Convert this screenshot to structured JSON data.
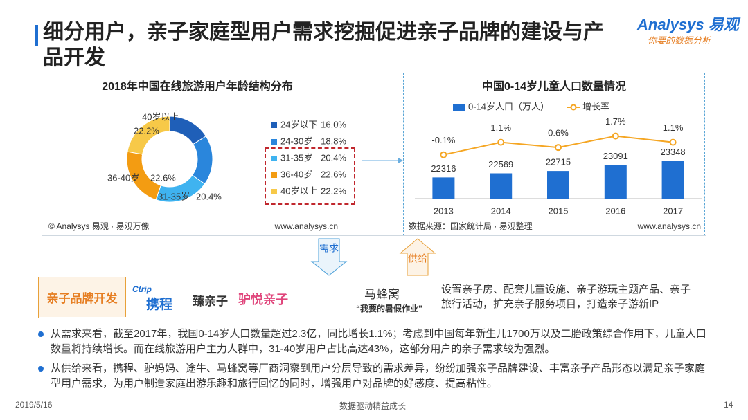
{
  "header": {
    "title": "细分用户，亲子家庭型用户需求挖掘促进亲子品牌的建设与产品开发",
    "logo": "Analysys",
    "logo_cn": "易观",
    "tagline": "你要的数据分析"
  },
  "chart_data": [
    {
      "type": "pie",
      "title": "2018年中国在线旅游用户年龄结构分布",
      "categories": [
        "24岁以下",
        "24-30岁",
        "31-35岁",
        "36-40岁",
        "40岁以上"
      ],
      "values": [
        16.0,
        18.8,
        20.4,
        22.6,
        22.2
      ],
      "value_labels": [
        "16.0%",
        "18.8%",
        "20.4%",
        "22.6%",
        "22.2%"
      ],
      "colors": [
        "#1f5fb8",
        "#2a86dc",
        "#3fb3f0",
        "#f39c12",
        "#f7c948"
      ],
      "donut": true,
      "source": "© Analysys 易观 · 易观万像",
      "url": "www.analysys.cn"
    },
    {
      "type": "bar",
      "title": "中国0-14岁儿童人口数量情况",
      "categories": [
        "2013",
        "2014",
        "2015",
        "2016",
        "2017"
      ],
      "series": [
        {
          "name": "0-14岁人口（万人）",
          "color": "#1f6fd1",
          "values": [
            22316,
            22569,
            22715,
            23091,
            23348
          ]
        },
        {
          "name": "增长率",
          "type": "line",
          "axis": "y2",
          "color": "#f5a623",
          "values": [
            -0.1,
            1.1,
            0.6,
            1.7,
            1.1
          ],
          "value_labels": [
            "-0.1%",
            "1.1%",
            "0.6%",
            "1.7%",
            "1.1%"
          ]
        }
      ],
      "ylim": [
        21000,
        25600
      ],
      "y2lim": [
        -4.3,
        2.8
      ],
      "source": "数据来源：国家统计局 · 易观整理",
      "url": "www.analysys.cn"
    }
  ],
  "flow": {
    "demand": "需求",
    "supply": "供给"
  },
  "brands": {
    "label": "亲子品牌开发",
    "logos": [
      "Ctrip",
      "携程",
      "臻亲子",
      "驴悦亲子",
      "马蜂窝",
      "“我要的暑假作业”"
    ],
    "text": "设置亲子房、配套儿童设施、亲子游玩主题产品、亲子旅行活动，扩充亲子服务项目，打造亲子游新IP"
  },
  "bullets": [
    "从需求来看，截至2017年，我国0-14岁人口数量超过2.3亿，同比增长1.1%；考虑到中国每年新生儿1700万以及二胎政策综合作用下，儿童人口数量将持续增长。而在线旅游用户主力人群中，31-40岁用户占比高达43%，这部分用户的亲子需求较为强烈。",
    "从供给来看，携程、驴妈妈、途牛、马蜂窝等厂商洞察到用户分层导致的需求差异，纷纷加强亲子品牌建设、丰富亲子产品形态以满足亲子家庭型用户需求，为用户制造家庭出游乐趣和旅行回忆的同时，增强用户对品牌的好感度、提高粘性。"
  ],
  "footer": {
    "date": "2019/5/16",
    "slogan": "数据驱动精益成长",
    "page": "14"
  }
}
